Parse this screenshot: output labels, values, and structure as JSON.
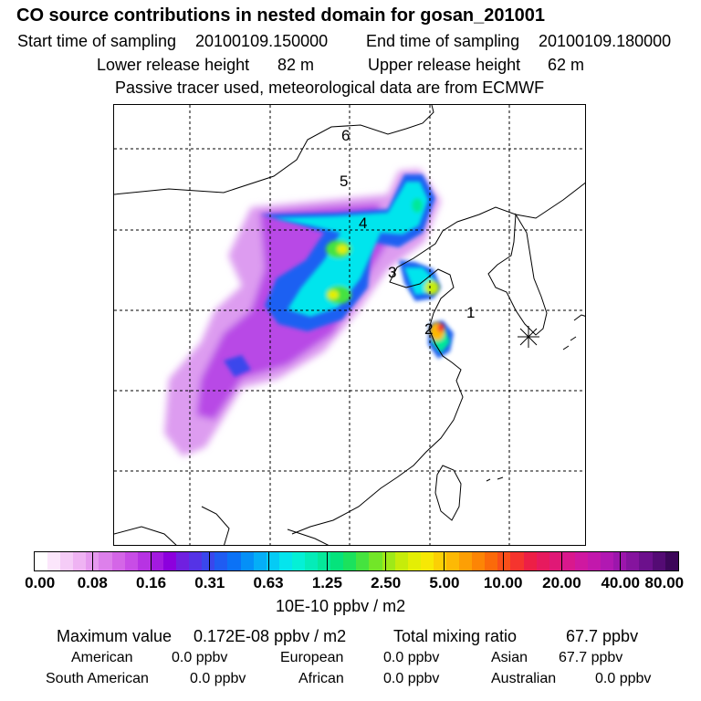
{
  "header": {
    "title": "CO  source contributions in nested domain for gosan_201001",
    "start_label": "Start time of sampling",
    "start_value": "20100109.150000",
    "end_label": "End time of sampling",
    "end_value": "20100109.180000",
    "lower_label": "Lower release height",
    "lower_value": "82 m",
    "upper_label": "Upper release height",
    "upper_value": "62 m",
    "note": "Passive tracer used, meteorological data are from ECMWF"
  },
  "map": {
    "release_levels": [
      "1",
      "2",
      "3",
      "4",
      "5",
      "6"
    ],
    "receptor_marker": "star-icon"
  },
  "colorbar": {
    "ticks": [
      "0.00",
      "0.08",
      "0.16",
      "0.31",
      "0.63",
      "1.25",
      "2.50",
      "5.00",
      "10.00",
      "20.00",
      "40.00",
      "80.00"
    ],
    "colors": [
      "#ffffff",
      "#fbe6fb",
      "#f5ccf7",
      "#efb3f3",
      "#e699ef",
      "#dd80eb",
      "#d466e7",
      "#c84de6",
      "#b733e3",
      "#a31ae0",
      "#8c00dd",
      "#7020e0",
      "#5533e6",
      "#3a47ec",
      "#1f5cf2",
      "#0b72f6",
      "#0590f7",
      "#05aef7",
      "#05cbf5",
      "#05e5ed",
      "#05f0d6",
      "#05ecb8",
      "#05e89a",
      "#05e37c",
      "#1be25d",
      "#45e33f",
      "#72e628",
      "#9ee918",
      "#c6ec0a",
      "#e4ee05",
      "#f7e805",
      "#fbd005",
      "#fdb905",
      "#fd9f05",
      "#fd8505",
      "#fb6a0a",
      "#f94f1a",
      "#f5342e",
      "#ed1f46",
      "#e71a5e",
      "#e01876",
      "#d9188d",
      "#cf18a0",
      "#c218ac",
      "#b118b2",
      "#9c16ac",
      "#85149e",
      "#6c108c",
      "#540b74",
      "#3c0659"
    ],
    "unit": "10E-10 ppbv / m2"
  },
  "stats": {
    "max_label": "Maximum value",
    "max_value": "0.172E-08 ppbv / m2",
    "total_label": "Total mixing ratio",
    "total_value": "67.7 ppbv",
    "regions": [
      {
        "name": "American",
        "value": "0.0 ppbv"
      },
      {
        "name": "European",
        "value": "0.0 ppbv"
      },
      {
        "name": "Asian",
        "value": "67.7 ppbv"
      },
      {
        "name": "South American",
        "value": "0.0 ppbv"
      },
      {
        "name": "African",
        "value": "0.0 ppbv"
      },
      {
        "name": "Australian",
        "value": "0.0 ppbv"
      }
    ]
  }
}
